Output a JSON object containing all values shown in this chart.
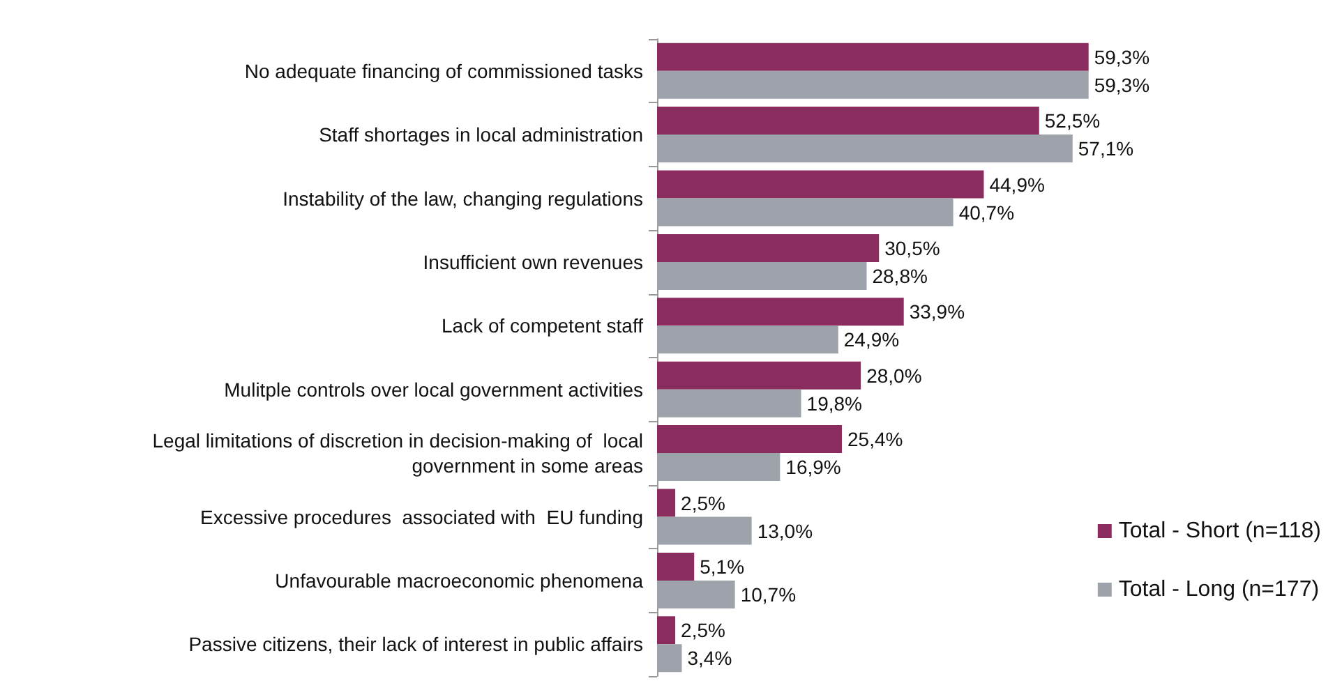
{
  "chart_data": {
    "type": "bar",
    "orientation": "horizontal",
    "legend": "right",
    "categories": [
      "No adequate financing of commissioned tasks",
      "Staff shortages in local administration",
      "Instability of the law, changing regulations",
      "Insufficient own revenues",
      "Lack of competent staff",
      "Mulitple controls over local government activities",
      "Legal limitations of discretion in decision-making of  local\ngovernment in some areas",
      "Excessive procedures  associated with  EU funding",
      "Unfavourable macroeconomic phenomena",
      "Passive citizens, their lack of interest in public affairs"
    ],
    "series": [
      {
        "name": "Total - Short (n=118)",
        "color": "#8b2c5e",
        "values": [
          59.3,
          52.5,
          44.9,
          30.5,
          33.9,
          28.0,
          25.4,
          2.5,
          5.1,
          2.5
        ],
        "value_labels": [
          "59,3%",
          "52,5%",
          "44,9%",
          "30,5%",
          "33,9%",
          "28,0%",
          "25,4%",
          "2,5%",
          "5,1%",
          "2,5%"
        ]
      },
      {
        "name": "Total - Long (n=177)",
        "color": "#9ea3ab",
        "values": [
          59.3,
          57.1,
          40.7,
          28.8,
          24.9,
          19.8,
          16.9,
          13.0,
          10.7,
          3.4
        ],
        "value_labels": [
          "59,3%",
          "57,1%",
          "40,7%",
          "28,8%",
          "24,9%",
          "19,8%",
          "16,9%",
          "13,0%",
          "10,7%",
          "3,4%"
        ]
      }
    ]
  }
}
